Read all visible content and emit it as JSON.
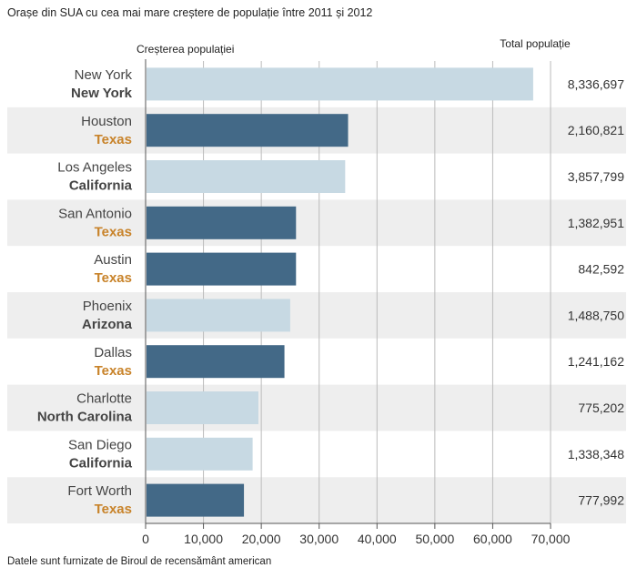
{
  "chart_data": {
    "type": "bar",
    "orientation": "horizontal",
    "title": "Orașe din SUA cu cea mai mare creștere de populație între 2011 și 2012",
    "xlabel": "Creșterea populației",
    "pop_header": "Total populație",
    "source": "Datele sunt furnizate de Biroul de recensământ american",
    "xlim": [
      0,
      70000
    ],
    "ticks": [
      "0",
      "10,000",
      "20,000",
      "30,000",
      "40,000",
      "50,000",
      "60,000",
      "70,000"
    ],
    "grid": "vertical",
    "colors": {
      "texas": "#436987",
      "other": "#c7d9e3",
      "texas_label": "#c8832a",
      "other_label": "#444444",
      "band": "#eeeeee"
    },
    "rows": [
      {
        "city": "New York",
        "state": "New York",
        "value": 67000,
        "population": "8,336,697",
        "texas": false
      },
      {
        "city": "Houston",
        "state": "Texas",
        "value": 35000,
        "population": "2,160,821",
        "texas": true
      },
      {
        "city": "Los Angeles",
        "state": "California",
        "value": 34500,
        "population": "3,857,799",
        "texas": false
      },
      {
        "city": "San Antonio",
        "state": "Texas",
        "value": 26000,
        "population": "1,382,951",
        "texas": true
      },
      {
        "city": "Austin",
        "state": "Texas",
        "value": 26000,
        "population": "842,592",
        "texas": true
      },
      {
        "city": "Phoenix",
        "state": "Arizona",
        "value": 25000,
        "population": "1,488,750",
        "texas": false
      },
      {
        "city": "Dallas",
        "state": "Texas",
        "value": 24000,
        "population": "1,241,162",
        "texas": true
      },
      {
        "city": "Charlotte",
        "state": "North Carolina",
        "value": 19500,
        "population": "775,202",
        "texas": false
      },
      {
        "city": "San Diego",
        "state": "California",
        "value": 18500,
        "population": "1,338,348",
        "texas": false
      },
      {
        "city": "Fort Worth",
        "state": "Texas",
        "value": 17000,
        "population": "777,992",
        "texas": true
      }
    ]
  }
}
